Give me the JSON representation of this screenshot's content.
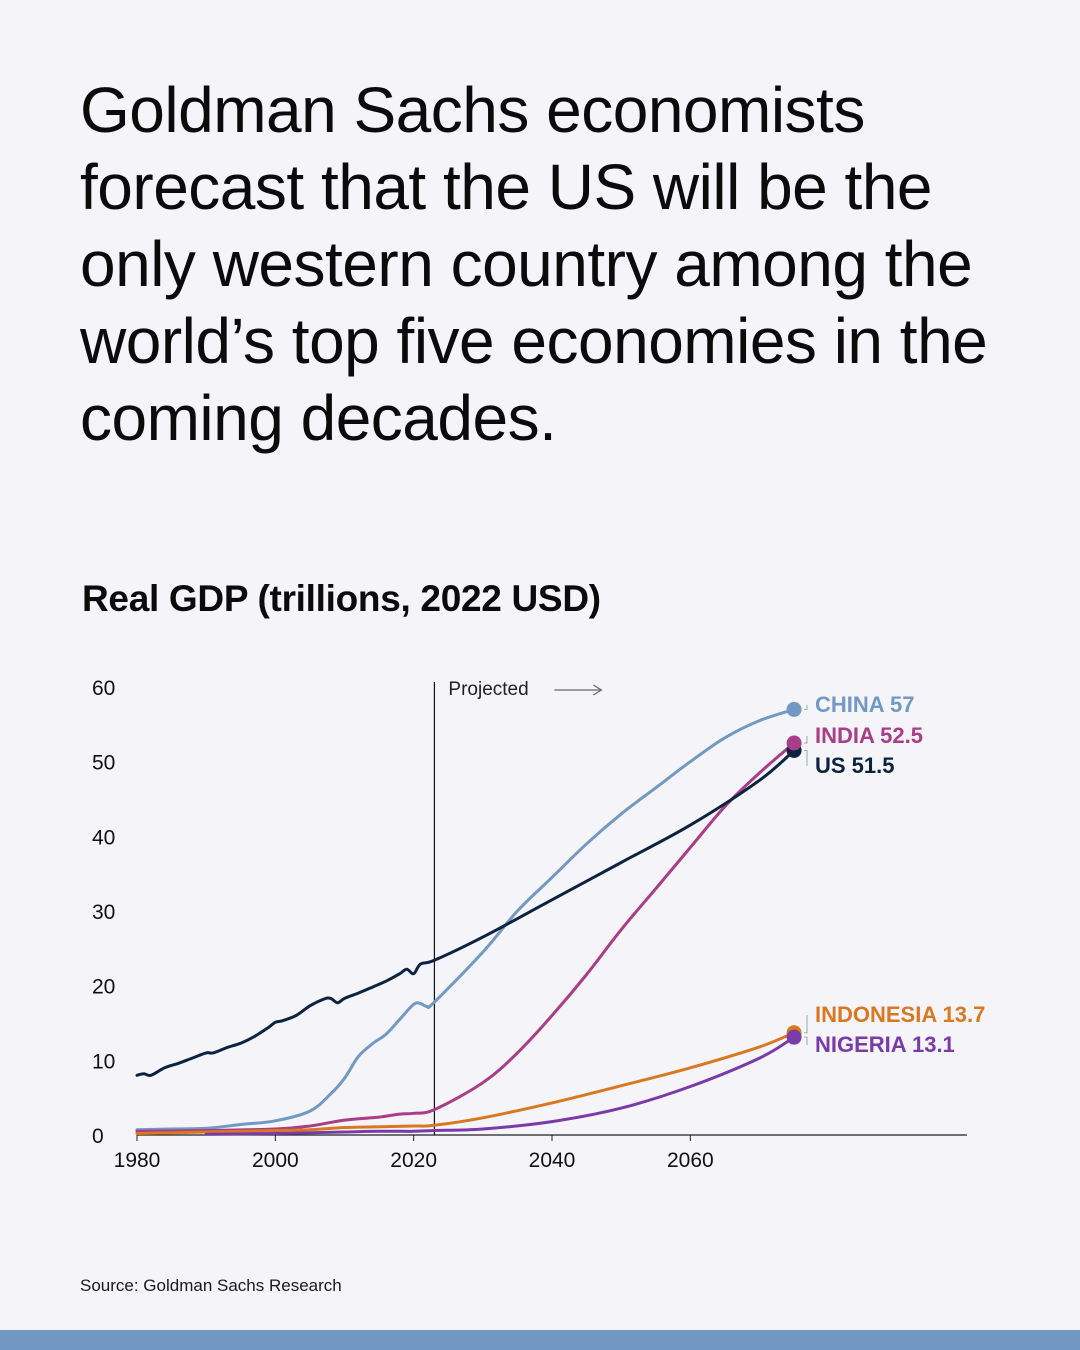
{
  "headline": "Goldman Sachs economists forecast that the US will be the only western country among the world’s top five economies in the coming decades.",
  "chart_title": "Real GDP (trillions, 2022 USD)",
  "source": "Source: Goldman Sachs Research",
  "chart_data": {
    "type": "line",
    "title": "Real GDP (trillions, 2022 USD)",
    "xlabel": "",
    "ylabel": "",
    "xlim": [
      1980,
      2100
    ],
    "ylim": [
      0,
      60
    ],
    "x_ticks": [
      1980,
      2000,
      2020,
      2040,
      2060
    ],
    "y_ticks": [
      0,
      10,
      20,
      30,
      40,
      50,
      60
    ],
    "grid": false,
    "projection_start": 2023,
    "projection_label": "Projected",
    "series": [
      {
        "name": "CHINA",
        "end_label": "CHINA 57",
        "color": "#7199c4",
        "points": [
          [
            1980,
            0.7
          ],
          [
            1985,
            0.8
          ],
          [
            1990,
            0.9
          ],
          [
            1995,
            1.4
          ],
          [
            2000,
            1.9
          ],
          [
            2005,
            3.2
          ],
          [
            2008,
            5.5
          ],
          [
            2010,
            7.6
          ],
          [
            2012,
            10.5
          ],
          [
            2014,
            12.2
          ],
          [
            2016,
            13.5
          ],
          [
            2018,
            15.5
          ],
          [
            2020,
            17.5
          ],
          [
            2021,
            17.6
          ],
          [
            2022,
            17.2
          ],
          [
            2023,
            17.8
          ],
          [
            2030,
            24.5
          ],
          [
            2035,
            30.0
          ],
          [
            2040,
            34.5
          ],
          [
            2045,
            39.0
          ],
          [
            2050,
            43.0
          ],
          [
            2055,
            46.5
          ],
          [
            2060,
            50.0
          ],
          [
            2065,
            53.2
          ],
          [
            2070,
            55.5
          ],
          [
            2075,
            57.0
          ]
        ]
      },
      {
        "name": "INDIA",
        "end_label": "INDIA 52.5",
        "color": "#a93d88",
        "points": [
          [
            1980,
            0.5
          ],
          [
            1990,
            0.6
          ],
          [
            2000,
            0.8
          ],
          [
            2005,
            1.2
          ],
          [
            2010,
            2.0
          ],
          [
            2015,
            2.4
          ],
          [
            2018,
            2.8
          ],
          [
            2020,
            2.9
          ],
          [
            2023,
            3.4
          ],
          [
            2030,
            7.0
          ],
          [
            2035,
            11.0
          ],
          [
            2040,
            16.0
          ],
          [
            2045,
            21.5
          ],
          [
            2050,
            27.5
          ],
          [
            2055,
            33.0
          ],
          [
            2060,
            38.5
          ],
          [
            2065,
            44.0
          ],
          [
            2070,
            48.5
          ],
          [
            2075,
            52.5
          ]
        ]
      },
      {
        "name": "US",
        "end_label": "US 51.5",
        "color": "#0c2340",
        "points": [
          [
            1980,
            8.0
          ],
          [
            1981,
            8.2
          ],
          [
            1982,
            8.0
          ],
          [
            1984,
            9.0
          ],
          [
            1986,
            9.6
          ],
          [
            1988,
            10.3
          ],
          [
            1990,
            11.0
          ],
          [
            1991,
            11.0
          ],
          [
            1993,
            11.7
          ],
          [
            1995,
            12.3
          ],
          [
            1997,
            13.2
          ],
          [
            1999,
            14.4
          ],
          [
            2000,
            15.1
          ],
          [
            2001,
            15.3
          ],
          [
            2003,
            16.0
          ],
          [
            2005,
            17.3
          ],
          [
            2007,
            18.2
          ],
          [
            2008,
            18.3
          ],
          [
            2009,
            17.7
          ],
          [
            2010,
            18.3
          ],
          [
            2012,
            19.0
          ],
          [
            2014,
            19.8
          ],
          [
            2016,
            20.6
          ],
          [
            2018,
            21.6
          ],
          [
            2019,
            22.2
          ],
          [
            2020,
            21.6
          ],
          [
            2021,
            22.9
          ],
          [
            2023,
            23.4
          ],
          [
            2030,
            26.5
          ],
          [
            2040,
            31.5
          ],
          [
            2050,
            36.5
          ],
          [
            2060,
            41.5
          ],
          [
            2070,
            47.5
          ],
          [
            2075,
            51.5
          ]
        ]
      },
      {
        "name": "INDONESIA",
        "end_label": "INDONESIA 13.7",
        "color": "#d9781f",
        "points": [
          [
            1980,
            0.2
          ],
          [
            1990,
            0.4
          ],
          [
            2000,
            0.6
          ],
          [
            2005,
            0.7
          ],
          [
            2010,
            1.0
          ],
          [
            2015,
            1.1
          ],
          [
            2020,
            1.2
          ],
          [
            2023,
            1.3
          ],
          [
            2030,
            2.3
          ],
          [
            2040,
            4.3
          ],
          [
            2050,
            6.6
          ],
          [
            2060,
            9.0
          ],
          [
            2070,
            11.8
          ],
          [
            2075,
            13.7
          ]
        ]
      },
      {
        "name": "NIGERIA",
        "end_label": "NIGERIA 13.1",
        "color": "#7a3ba8",
        "points": [
          [
            1990,
            0.1
          ],
          [
            2000,
            0.2
          ],
          [
            2010,
            0.4
          ],
          [
            2015,
            0.5
          ],
          [
            2020,
            0.5
          ],
          [
            2023,
            0.6
          ],
          [
            2030,
            0.8
          ],
          [
            2040,
            1.8
          ],
          [
            2050,
            3.6
          ],
          [
            2060,
            6.5
          ],
          [
            2070,
            10.3
          ],
          [
            2075,
            13.1
          ]
        ]
      }
    ]
  }
}
